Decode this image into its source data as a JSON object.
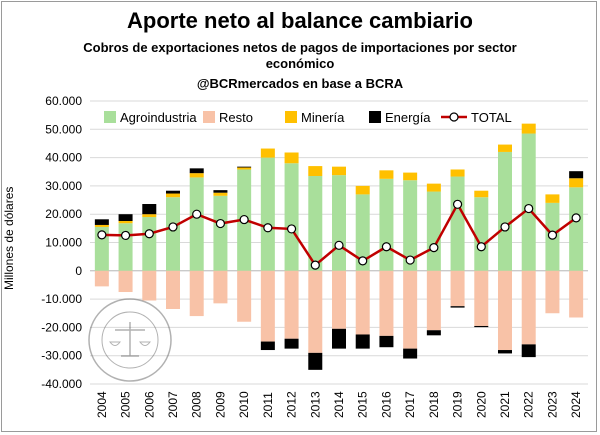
{
  "chart_data": {
    "type": "bar",
    "title": "Aporte neto al balance cambiario",
    "subtitle": "Cobros de exportaciones netos de pagos de importaciones por sector económico",
    "credit": "@BCRmercados en base a BCRA",
    "xlabel": "",
    "ylabel": "Millones de dólares",
    "ylim": [
      -40000,
      60000
    ],
    "yticks": [
      -40000,
      -30000,
      -20000,
      -10000,
      0,
      10000,
      20000,
      30000,
      40000,
      50000,
      60000
    ],
    "ytick_labels": [
      "-40.000",
      "-30.000",
      "-20.000",
      "-10.000",
      "0",
      "10.000",
      "20.000",
      "30.000",
      "40.000",
      "50.000",
      "60.000"
    ],
    "categories": [
      "2004",
      "2005",
      "2006",
      "2007",
      "2008",
      "2009",
      "2010",
      "2011",
      "2012",
      "2013",
      "2014",
      "2015",
      "2016",
      "2017",
      "2018",
      "2019",
      "2020",
      "2021",
      "2022",
      "2023",
      "2024"
    ],
    "stacked": true,
    "grid": true,
    "legend_position": "top",
    "series": [
      {
        "name": "Agroindustria",
        "kind": "bar",
        "color": "#a9df9b",
        "values": [
          15500,
          16800,
          19000,
          26000,
          33000,
          26500,
          35800,
          40000,
          38000,
          33500,
          33800,
          27000,
          32500,
          32000,
          28000,
          33300,
          26000,
          42000,
          48500,
          24000,
          29500
        ]
      },
      {
        "name": "Resto",
        "kind": "bar",
        "color": "#f8c2a7",
        "values": [
          -5500,
          -7500,
          -10500,
          -13500,
          -16000,
          -11500,
          -18000,
          -25000,
          -24000,
          -29000,
          -20500,
          -22500,
          -23000,
          -27500,
          -21000,
          -12500,
          -19500,
          -28000,
          -26000,
          -15000,
          -16500
        ]
      },
      {
        "name": "Minería",
        "kind": "bar",
        "color": "#ffc000",
        "values": [
          700,
          800,
          1000,
          1300,
          1500,
          1100,
          700,
          3200,
          3800,
          3500,
          3000,
          3000,
          3000,
          2700,
          2800,
          2500,
          2300,
          2600,
          3500,
          3000,
          3200
        ]
      },
      {
        "name": "Energía",
        "kind": "bar",
        "color": "#000000",
        "values": [
          2000,
          2400,
          3600,
          1000,
          1700,
          900,
          300,
          -3000,
          -3500,
          -6000,
          -7000,
          -5000,
          -4000,
          -3500,
          -1800,
          -500,
          -400,
          -1200,
          -4500,
          0,
          2500
        ]
      },
      {
        "name": "TOTAL",
        "kind": "line",
        "color": "#c00000",
        "values": [
          12700,
          12500,
          13100,
          15500,
          20000,
          16700,
          18100,
          15200,
          14800,
          2000,
          9000,
          3500,
          8500,
          3800,
          8200,
          23500,
          8500,
          15500,
          22000,
          12600,
          18700
        ]
      }
    ]
  }
}
